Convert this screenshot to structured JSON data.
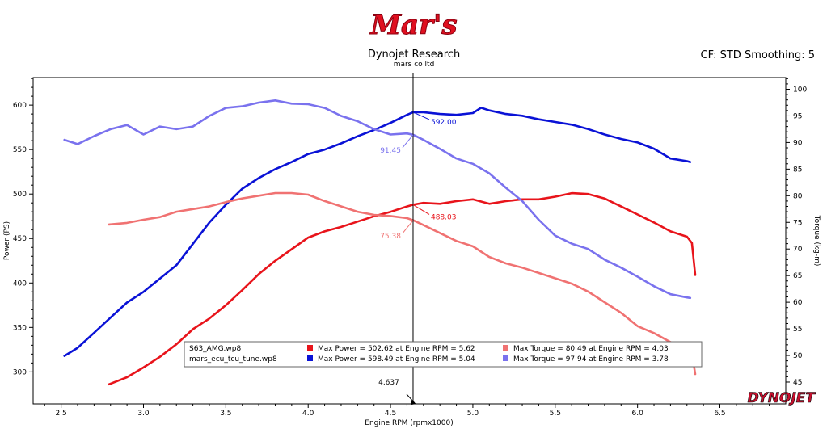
{
  "header": {
    "logo_text": "Mar's",
    "title": "Dynojet Research",
    "subtitle": "mars co ltd",
    "cf_label": "CF: STD Smoothing: 5",
    "brand": "DYNOJET"
  },
  "colors": {
    "red": "#e8141b",
    "blue": "#0a12d6",
    "light_red": "#f07272",
    "light_blue": "#7a72ee",
    "logo_red": "#e01020"
  },
  "chart_data": {
    "type": "line",
    "title": "Dynojet Research",
    "xlabel": "Engine RPM (rpmx1000)",
    "ylabel": "Power (PS)",
    "y2label": "Torque (kg-m)",
    "xlim": [
      2.33,
      6.9
    ],
    "ylim": [
      264,
      631
    ],
    "y2lim": [
      40.9,
      102.2
    ],
    "xticks": [
      2.5,
      3.0,
      3.5,
      4.0,
      4.5,
      5.0,
      5.5,
      6.0,
      6.5
    ],
    "xtick_labels": [
      "2.5",
      "3.0",
      "3.5",
      "4.0",
      "4.5",
      "5.0",
      "5.5",
      "6.0",
      "6.5"
    ],
    "yticks": [
      300,
      350,
      400,
      450,
      500,
      550,
      600
    ],
    "ytick_labels": [
      "300",
      "350",
      "400",
      "450",
      "500",
      "550",
      "600"
    ],
    "y2ticks": [
      45,
      50,
      55,
      60,
      65,
      70,
      75,
      80,
      85,
      90,
      95,
      100
    ],
    "y2tick_labels": [
      "45",
      "50",
      "55",
      "60",
      "65",
      "70",
      "75",
      "80",
      "85",
      "90",
      "95",
      "100"
    ],
    "cursor": {
      "x": 4.637,
      "label": "4.637"
    },
    "series": [
      {
        "name": "S63_AMG.wp8 Power",
        "axis": "left",
        "color": "red",
        "x": [
          2.79,
          2.9,
          3.0,
          3.1,
          3.2,
          3.3,
          3.4,
          3.5,
          3.6,
          3.7,
          3.8,
          3.9,
          4.0,
          4.1,
          4.2,
          4.3,
          4.4,
          4.5,
          4.6,
          4.637,
          4.7,
          4.8,
          4.9,
          5.0,
          5.1,
          5.2,
          5.3,
          5.4,
          5.5,
          5.6,
          5.7,
          5.8,
          5.9,
          6.0,
          6.1,
          6.2,
          6.3,
          6.33,
          6.35
        ],
        "y": [
          286,
          294,
          305,
          317,
          331,
          348,
          360,
          375,
          392,
          410,
          425,
          438,
          451,
          458,
          463,
          469,
          475,
          480,
          486,
          488,
          490,
          489,
          492,
          494,
          489,
          492,
          494,
          494,
          497,
          501,
          500,
          495,
          486,
          477,
          468,
          458,
          452,
          445,
          409
        ]
      },
      {
        "name": "mars_ecu_tcu_tune.wp8 Power",
        "axis": "left",
        "color": "blue",
        "x": [
          2.52,
          2.6,
          2.7,
          2.8,
          2.9,
          3.0,
          3.1,
          3.2,
          3.3,
          3.4,
          3.5,
          3.6,
          3.7,
          3.8,
          3.9,
          4.0,
          4.1,
          4.2,
          4.3,
          4.4,
          4.5,
          4.6,
          4.637,
          4.7,
          4.8,
          4.9,
          5.0,
          5.05,
          5.1,
          5.2,
          5.3,
          5.4,
          5.5,
          5.6,
          5.7,
          5.8,
          5.9,
          6.0,
          6.1,
          6.2,
          6.3,
          6.32
        ],
        "y": [
          318,
          327,
          344,
          361,
          378,
          390,
          405,
          420,
          444,
          468,
          488,
          506,
          518,
          528,
          536,
          545,
          550,
          557,
          565,
          572,
          580,
          589,
          592,
          592,
          590,
          589,
          591,
          597,
          594,
          590,
          588,
          584,
          581,
          578,
          573,
          567,
          562,
          558,
          551,
          540,
          537,
          536
        ]
      },
      {
        "name": "S63_AMG.wp8 Torque",
        "axis": "right",
        "color": "light_red",
        "x": [
          2.79,
          2.9,
          3.0,
          3.1,
          3.2,
          3.3,
          3.4,
          3.5,
          3.6,
          3.7,
          3.8,
          3.9,
          4.0,
          4.1,
          4.2,
          4.3,
          4.4,
          4.5,
          4.6,
          4.637,
          4.7,
          4.8,
          4.9,
          5.0,
          5.1,
          5.2,
          5.3,
          5.4,
          5.5,
          5.6,
          5.7,
          5.8,
          5.9,
          6.0,
          6.1,
          6.2,
          6.3,
          6.33,
          6.35
        ],
        "y": [
          74.6,
          74.9,
          75.5,
          76.0,
          77.0,
          77.5,
          78.0,
          78.8,
          79.5,
          80.0,
          80.5,
          80.5,
          80.2,
          79.0,
          78.0,
          77.0,
          76.4,
          76.2,
          75.8,
          75.4,
          74.5,
          73.0,
          71.5,
          70.5,
          68.5,
          67.3,
          66.5,
          65.5,
          64.5,
          63.5,
          62.0,
          60.0,
          58.0,
          55.5,
          54.2,
          52.5,
          51.5,
          50.5,
          46.5
        ]
      },
      {
        "name": "mars_ecu_tcu_tune.wp8 Torque",
        "axis": "right",
        "color": "light_blue",
        "x": [
          2.52,
          2.6,
          2.7,
          2.8,
          2.9,
          3.0,
          3.1,
          3.2,
          3.3,
          3.4,
          3.5,
          3.6,
          3.7,
          3.8,
          3.9,
          4.0,
          4.1,
          4.2,
          4.3,
          4.4,
          4.5,
          4.6,
          4.637,
          4.7,
          4.8,
          4.9,
          5.0,
          5.1,
          5.2,
          5.3,
          5.4,
          5.5,
          5.6,
          5.7,
          5.8,
          5.9,
          6.0,
          6.1,
          6.2,
          6.3,
          6.32
        ],
        "y": [
          90.5,
          89.7,
          91.2,
          92.5,
          93.3,
          91.5,
          93.0,
          92.5,
          93.0,
          95.0,
          96.5,
          96.8,
          97.5,
          97.9,
          97.3,
          97.2,
          96.5,
          95.0,
          94.0,
          92.5,
          91.5,
          91.7,
          91.45,
          90.5,
          88.8,
          87.0,
          86.0,
          84.2,
          81.5,
          79.0,
          75.5,
          72.5,
          71.0,
          70.0,
          68.0,
          66.5,
          64.8,
          63.0,
          61.5,
          60.9,
          60.8
        ]
      }
    ],
    "annotations": [
      {
        "series": 1,
        "x": 4.637,
        "y": 592,
        "label": "592.00"
      },
      {
        "series": 0,
        "x": 4.637,
        "y": 488,
        "label": "488.03"
      },
      {
        "series": 3,
        "x": 4.637,
        "y": 91.45,
        "label": "91.45"
      },
      {
        "series": 2,
        "x": 4.637,
        "y": 75.38,
        "label": "75.38"
      }
    ],
    "legend": {
      "position": "bottom-center",
      "rows": [
        {
          "file": "S63_AMG.wp8",
          "power_text": "Max Power = 502.62 at Engine RPM = 5.62",
          "power_color": "red",
          "torque_text": "Max Torque = 80.49 at Engine RPM = 4.03",
          "torque_color": "light_red"
        },
        {
          "file": "mars_ecu_tcu_tune.wp8",
          "power_text": "Max Power = 598.49 at Engine RPM = 5.04",
          "power_color": "blue",
          "torque_text": "Max Torque = 97.94 at Engine RPM = 3.78",
          "torque_color": "light_blue"
        }
      ]
    }
  }
}
